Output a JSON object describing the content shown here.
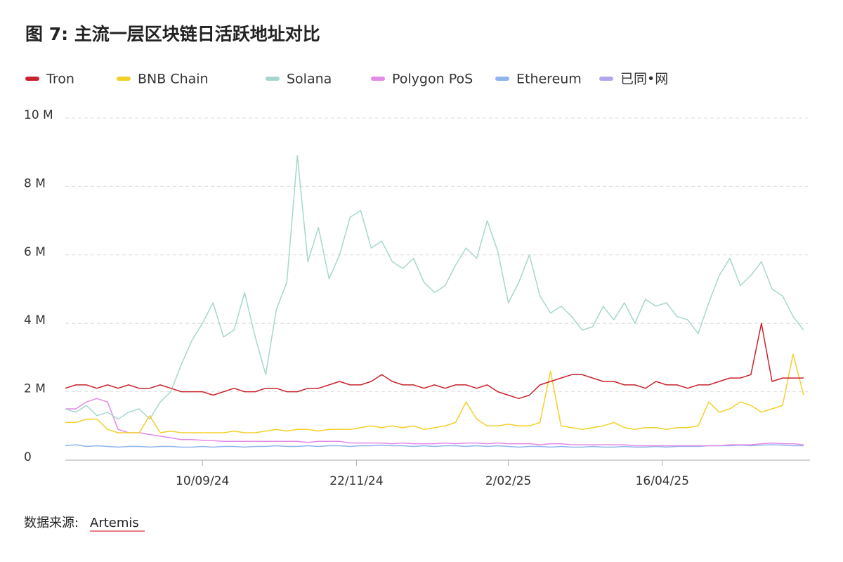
{
  "chart_data": {
    "type": "line",
    "title": "图 7: 主流一层区块链日活跃地址对比",
    "source_label": "数据来源:",
    "source": "Artemis",
    "x": [
      "2024-07-07",
      "2024-07-12",
      "2024-07-17",
      "2024-07-22",
      "2024-07-27",
      "2024-08-01",
      "2024-08-06",
      "2024-08-11",
      "2024-08-16",
      "2024-08-21",
      "2024-08-26",
      "2024-08-31",
      "2024-09-05",
      "2024-09-10",
      "2024-09-15",
      "2024-09-20",
      "2024-09-25",
      "2024-09-30",
      "2024-10-05",
      "2024-10-10",
      "2024-10-15",
      "2024-10-20",
      "2024-10-25",
      "2024-10-30",
      "2024-11-04",
      "2024-11-09",
      "2024-11-14",
      "2024-11-19",
      "2024-11-24",
      "2024-11-29",
      "2024-12-04",
      "2024-12-09",
      "2024-12-14",
      "2024-12-19",
      "2024-12-24",
      "2024-12-29",
      "2025-01-03",
      "2025-01-08",
      "2025-01-13",
      "2025-01-18",
      "2025-01-23",
      "2025-01-28",
      "2025-02-02",
      "2025-02-07",
      "2025-02-12",
      "2025-02-17",
      "2025-02-22",
      "2025-02-27",
      "2025-03-04",
      "2025-03-09",
      "2025-03-14",
      "2025-03-19",
      "2025-03-24",
      "2025-03-29",
      "2025-04-03",
      "2025-04-08",
      "2025-04-13",
      "2025-04-18",
      "2025-04-23",
      "2025-04-28",
      "2025-05-03",
      "2025-05-08",
      "2025-05-13",
      "2025-05-18",
      "2025-05-23",
      "2025-05-28",
      "2025-06-02",
      "2025-06-07",
      "2025-06-12",
      "2025-06-17",
      "2025-06-22"
    ],
    "xlim": [
      "2024-07-07",
      "2025-06-24"
    ],
    "xticks": [
      {
        "value": "2024-09-10",
        "label": "10/09/24"
      },
      {
        "value": "2024-11-22",
        "label": "22/11/24"
      },
      {
        "value": "2025-02-02",
        "label": "2/02/25"
      },
      {
        "value": "2025-04-16",
        "label": "16/04/25"
      }
    ],
    "ylim": [
      0,
      10
    ],
    "yticks": [
      0,
      {
        "value": 2,
        "label": "2 M"
      },
      {
        "value": 4,
        "label": "4 M"
      },
      {
        "value": 6,
        "label": "6 M"
      },
      {
        "value": 8,
        "label": "8 M"
      },
      {
        "value": 10,
        "label": "10 M"
      }
    ],
    "grid": true,
    "legend": "top",
    "series": [
      {
        "name": "Tron",
        "color": "#c8232c",
        "values": [
          2.1,
          2.2,
          2.2,
          2.1,
          2.2,
          2.1,
          2.2,
          2.1,
          2.1,
          2.2,
          2.1,
          2.0,
          2.0,
          2.0,
          1.9,
          2.0,
          2.1,
          2.0,
          2.0,
          2.1,
          2.1,
          2.0,
          2.0,
          2.1,
          2.1,
          2.2,
          2.3,
          2.2,
          2.2,
          2.3,
          2.5,
          2.3,
          2.2,
          2.2,
          2.1,
          2.2,
          2.1,
          2.2,
          2.2,
          2.1,
          2.2,
          2.0,
          1.9,
          1.8,
          1.9,
          2.2,
          2.3,
          2.4,
          2.5,
          2.5,
          2.4,
          2.3,
          2.3,
          2.2,
          2.2,
          2.1,
          2.3,
          2.2,
          2.2,
          2.1,
          2.2,
          2.2,
          2.3,
          2.4,
          2.4,
          2.5,
          4.0,
          2.3,
          2.4,
          2.4,
          2.4
        ]
      },
      {
        "name": "BNB Chain",
        "color": "#f3d02a",
        "values": [
          1.1,
          1.1,
          1.2,
          1.2,
          0.9,
          0.8,
          0.8,
          0.8,
          1.3,
          0.8,
          0.85,
          0.8,
          0.8,
          0.8,
          0.8,
          0.8,
          0.85,
          0.8,
          0.8,
          0.85,
          0.9,
          0.85,
          0.9,
          0.9,
          0.85,
          0.9,
          0.9,
          0.9,
          0.95,
          1.0,
          0.95,
          1.0,
          0.95,
          1.0,
          0.9,
          0.95,
          1.0,
          1.1,
          1.7,
          1.2,
          1.0,
          1.0,
          1.05,
          1.0,
          1.0,
          1.1,
          2.6,
          1.0,
          0.95,
          0.9,
          0.95,
          1.0,
          1.1,
          0.95,
          0.9,
          0.95,
          0.95,
          0.9,
          0.95,
          0.95,
          1.0,
          1.7,
          1.4,
          1.5,
          1.7,
          1.6,
          1.4,
          1.5,
          1.6,
          3.1,
          1.9
        ]
      },
      {
        "name": "Solana",
        "color": "#a6d7cd",
        "values": [
          1.5,
          1.4,
          1.6,
          1.3,
          1.4,
          1.2,
          1.4,
          1.5,
          1.2,
          1.7,
          2.0,
          2.8,
          3.5,
          4.0,
          4.6,
          3.6,
          3.8,
          4.9,
          3.6,
          2.5,
          4.4,
          5.2,
          8.9,
          5.8,
          6.8,
          5.3,
          6.0,
          7.1,
          7.3,
          6.2,
          6.4,
          5.8,
          5.6,
          5.9,
          5.2,
          4.9,
          5.1,
          5.7,
          6.2,
          5.9,
          7.0,
          6.1,
          4.6,
          5.2,
          6.0,
          4.8,
          4.3,
          4.5,
          4.2,
          3.8,
          3.9,
          4.5,
          4.1,
          4.6,
          4.0,
          4.7,
          4.5,
          4.6,
          4.2,
          4.1,
          3.7,
          4.6,
          5.4,
          5.9,
          5.1,
          5.4,
          5.8,
          5.0,
          4.8,
          4.2,
          3.8
        ]
      },
      {
        "name": "Polygon PoS",
        "color": "#e38ae6",
        "values": [
          1.5,
          1.5,
          1.7,
          1.8,
          1.7,
          0.9,
          0.8,
          0.8,
          0.75,
          0.7,
          0.65,
          0.6,
          0.6,
          0.58,
          0.57,
          0.55,
          0.55,
          0.55,
          0.55,
          0.55,
          0.55,
          0.55,
          0.55,
          0.52,
          0.55,
          0.55,
          0.55,
          0.5,
          0.5,
          0.5,
          0.5,
          0.48,
          0.5,
          0.48,
          0.48,
          0.48,
          0.5,
          0.48,
          0.5,
          0.5,
          0.48,
          0.5,
          0.48,
          0.48,
          0.48,
          0.45,
          0.48,
          0.48,
          0.45,
          0.45,
          0.45,
          0.45,
          0.45,
          0.45,
          0.42,
          0.42,
          0.42,
          0.42,
          0.42,
          0.42,
          0.42,
          0.42,
          0.42,
          0.45,
          0.45,
          0.45,
          0.48,
          0.5,
          0.48,
          0.48,
          0.45
        ]
      },
      {
        "name": "Ethereum",
        "color": "#8fb4ee",
        "values": [
          0.42,
          0.45,
          0.4,
          0.42,
          0.4,
          0.38,
          0.4,
          0.4,
          0.38,
          0.4,
          0.4,
          0.38,
          0.38,
          0.4,
          0.38,
          0.4,
          0.4,
          0.38,
          0.4,
          0.4,
          0.42,
          0.4,
          0.4,
          0.42,
          0.4,
          0.42,
          0.42,
          0.4,
          0.42,
          0.42,
          0.44,
          0.42,
          0.42,
          0.4,
          0.42,
          0.4,
          0.42,
          0.42,
          0.4,
          0.42,
          0.4,
          0.42,
          0.4,
          0.38,
          0.4,
          0.4,
          0.38,
          0.4,
          0.38,
          0.38,
          0.4,
          0.38,
          0.38,
          0.4,
          0.38,
          0.38,
          0.4,
          0.38,
          0.4,
          0.4,
          0.4,
          0.42,
          0.42,
          0.42,
          0.44,
          0.42,
          0.44,
          0.45,
          0.44,
          0.42,
          0.42
        ]
      },
      {
        "name": "已同•网",
        "color": "#b3a6ec",
        "values": [
          null,
          null,
          null,
          null,
          null,
          null,
          null,
          null,
          null,
          null,
          null,
          null,
          null,
          null,
          null,
          null,
          null,
          null,
          null,
          null,
          null,
          null,
          null,
          null,
          null,
          null,
          null,
          null,
          null,
          null,
          null,
          null,
          null,
          null,
          null,
          null,
          null,
          null,
          null,
          null,
          null,
          null,
          null,
          null,
          null,
          null,
          null,
          null,
          null,
          null,
          null,
          null,
          null,
          null,
          null,
          null,
          null,
          null,
          null,
          null,
          null,
          null,
          null,
          null,
          null,
          null,
          null,
          null,
          null,
          null,
          null
        ]
      }
    ]
  }
}
